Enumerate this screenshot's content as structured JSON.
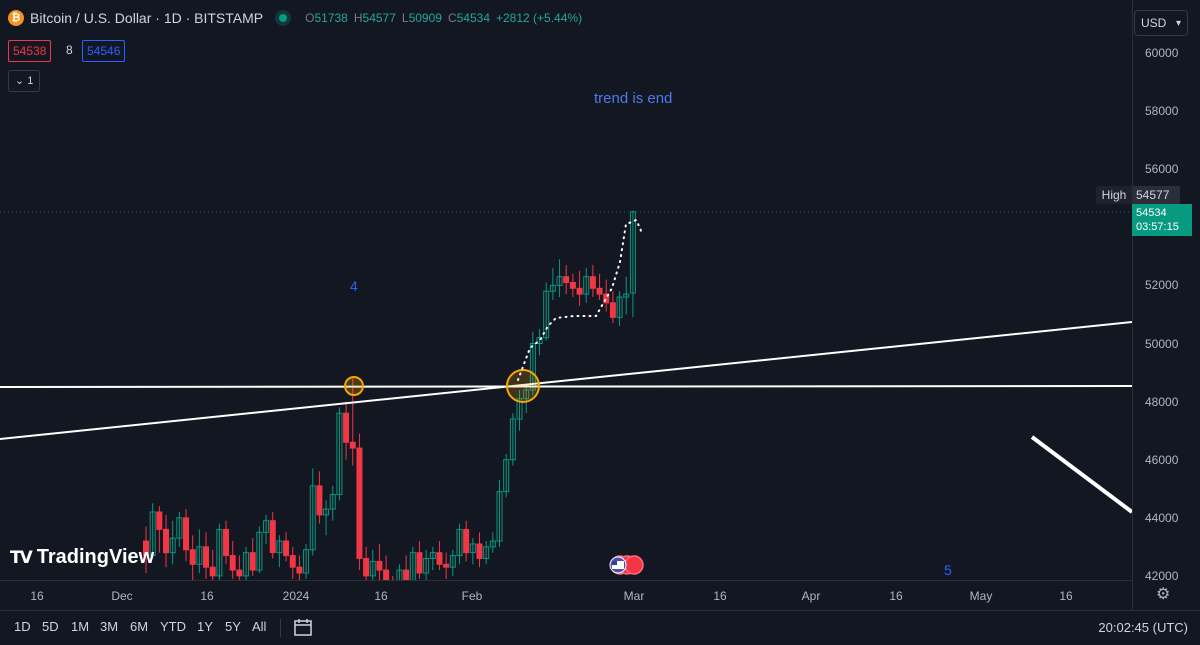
{
  "header": {
    "title": "Bitcoin / U.S. Dollar · 1D · BITSTAMP",
    "coin_icon": "bitcoin-icon",
    "ohlc": {
      "o_label": "O",
      "o": "51738",
      "h_label": "H",
      "h": "54577",
      "l_label": "L",
      "l": "50909",
      "c_label": "C",
      "c": "54534",
      "change": "+2812 (+5.44%)"
    },
    "bid": "54538",
    "spread": "8",
    "ask": "54546",
    "indicators_toggle": "1"
  },
  "currency": "USD",
  "price_axis": {
    "ticks": [
      "60000",
      "58000",
      "56000",
      "54000",
      "52000",
      "50000",
      "48000",
      "46000",
      "44000",
      "42000"
    ],
    "high_label": "High",
    "high_value": "54577",
    "last_price": "54534",
    "countdown": "03:57:15"
  },
  "time_axis": {
    "ticks": [
      "16",
      "Dec",
      "16",
      "2024",
      "16",
      "Feb",
      "Mar",
      "16",
      "Apr",
      "16",
      "May",
      "16"
    ]
  },
  "annotations": {
    "trend": "trend is end",
    "wave4": "4",
    "wave5": "5"
  },
  "logo": "TradingView",
  "bottom_bar": {
    "ranges": [
      "1D",
      "5D",
      "1M",
      "3M",
      "6M",
      "YTD",
      "1Y",
      "5Y",
      "All"
    ],
    "clock": "20:02:45 (UTC)"
  },
  "colors": {
    "up": "#089981",
    "down": "#f23645",
    "bg": "#131722",
    "annotation": "#2962ff",
    "highlight": "#f7a600"
  },
  "chart_data": {
    "type": "candlestick",
    "ylim": [
      41900,
      60500
    ],
    "candles": [
      [
        43200,
        43700,
        42100,
        42700
      ],
      [
        42700,
        44500,
        42600,
        44200
      ],
      [
        44200,
        44400,
        42800,
        43600
      ],
      [
        43600,
        44100,
        42300,
        42800
      ],
      [
        42800,
        43900,
        42400,
        43300
      ],
      [
        43300,
        44200,
        43000,
        44000
      ],
      [
        44000,
        44300,
        42500,
        42900
      ],
      [
        42900,
        43400,
        41800,
        42400
      ],
      [
        42400,
        43600,
        42100,
        43000
      ],
      [
        43000,
        43500,
        41900,
        42300
      ],
      [
        42300,
        42900,
        41700,
        42000
      ],
      [
        42000,
        43800,
        41800,
        43600
      ],
      [
        43600,
        43900,
        42400,
        42700
      ],
      [
        42700,
        43200,
        41900,
        42200
      ],
      [
        42200,
        42700,
        41600,
        42000
      ],
      [
        42000,
        43000,
        41800,
        42800
      ],
      [
        42800,
        43300,
        42000,
        42200
      ],
      [
        42200,
        43700,
        42100,
        43500
      ],
      [
        43500,
        44100,
        43100,
        43900
      ],
      [
        43900,
        44200,
        42600,
        42800
      ],
      [
        42800,
        43400,
        42300,
        43200
      ],
      [
        43200,
        43500,
        42500,
        42700
      ],
      [
        42700,
        43000,
        41900,
        42300
      ],
      [
        42300,
        42700,
        41800,
        42100
      ],
      [
        42100,
        43100,
        41900,
        42900
      ],
      [
        42900,
        45700,
        42700,
        45100
      ],
      [
        45100,
        45600,
        43800,
        44100
      ],
      [
        44100,
        44600,
        43400,
        44300
      ],
      [
        44300,
        45100,
        43900,
        44800
      ],
      [
        44800,
        47800,
        44600,
        47600
      ],
      [
        47600,
        48000,
        46000,
        46600
      ],
      [
        46600,
        48800,
        45800,
        46400
      ],
      [
        46400,
        46900,
        42200,
        42600
      ],
      [
        42600,
        43000,
        41600,
        42000
      ],
      [
        42000,
        42900,
        41600,
        42500
      ],
      [
        42500,
        43100,
        41800,
        42200
      ],
      [
        42200,
        42700,
        41200,
        41600
      ],
      [
        41600,
        42000,
        40600,
        41000
      ],
      [
        41000,
        42400,
        40700,
        42200
      ],
      [
        42200,
        42700,
        41500,
        41700
      ],
      [
        41700,
        43000,
        41600,
        42800
      ],
      [
        42800,
        43200,
        41900,
        42100
      ],
      [
        42100,
        42900,
        41800,
        42600
      ],
      [
        42600,
        43000,
        42200,
        42800
      ],
      [
        42800,
        43200,
        42200,
        42400
      ],
      [
        42400,
        42800,
        41900,
        42300
      ],
      [
        42300,
        42900,
        42000,
        42700
      ],
      [
        42700,
        43800,
        42400,
        43600
      ],
      [
        43600,
        43900,
        42500,
        42800
      ],
      [
        42800,
        43300,
        42400,
        43100
      ],
      [
        43100,
        43500,
        42300,
        42600
      ],
      [
        42600,
        43200,
        42400,
        43000
      ],
      [
        43000,
        43500,
        42800,
        43200
      ],
      [
        43200,
        45300,
        43000,
        44900
      ],
      [
        44900,
        46200,
        44700,
        46000
      ],
      [
        46000,
        47600,
        45800,
        47400
      ],
      [
        47400,
        48400,
        47000,
        48100
      ],
      [
        48100,
        48600,
        47600,
        48400
      ],
      [
        48400,
        50400,
        48200,
        50000
      ],
      [
        50000,
        50500,
        49600,
        50200
      ],
      [
        50200,
        52100,
        50100,
        51800
      ],
      [
        51800,
        52600,
        51500,
        52000
      ],
      [
        52000,
        52900,
        51600,
        52300
      ],
      [
        52300,
        52700,
        51700,
        52100
      ],
      [
        52100,
        52400,
        51600,
        51900
      ],
      [
        51900,
        52500,
        51300,
        51700
      ],
      [
        51700,
        52600,
        51400,
        52300
      ],
      [
        52300,
        52700,
        51600,
        51900
      ],
      [
        51900,
        52400,
        51500,
        51700
      ],
      [
        51700,
        52200,
        51100,
        51400
      ],
      [
        51400,
        51800,
        50700,
        50900
      ],
      [
        50900,
        51800,
        50600,
        51600
      ],
      [
        51600,
        52300,
        51000,
        51700
      ],
      [
        51738,
        54577,
        50909,
        54534
      ]
    ],
    "high_line": 54577,
    "dotted_path": [
      [
        49700,
        "c56"
      ],
      [
        52200,
        "c62"
      ],
      [
        54100,
        "c73"
      ]
    ]
  }
}
